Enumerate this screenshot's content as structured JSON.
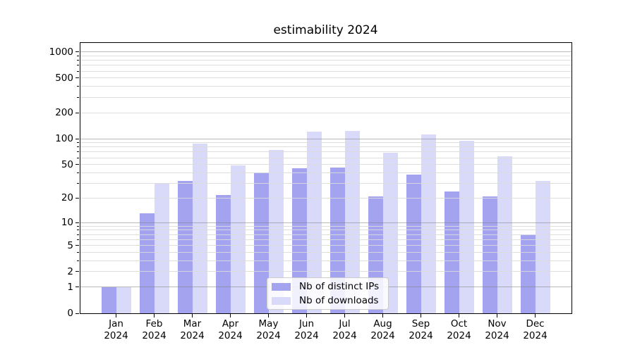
{
  "title": "estimability 2024",
  "chart_data": {
    "type": "bar",
    "title": "estimability 2024",
    "categories": [
      "Jan 2024",
      "Feb 2024",
      "Mar 2024",
      "Apr 2024",
      "May 2024",
      "Jun 2024",
      "Jul 2024",
      "Aug 2024",
      "Sep 2024",
      "Oct 2024",
      "Nov 2024",
      "Dec 2024"
    ],
    "month_short": [
      "Jan",
      "Feb",
      "Mar",
      "Apr",
      "May",
      "Jun",
      "Jul",
      "Aug",
      "Sep",
      "Oct",
      "Nov",
      "Dec"
    ],
    "year": "2024",
    "series": [
      {
        "name": "Nb of distinct IPs",
        "color": "#a3a3f0",
        "values": [
          1,
          13,
          32,
          22,
          40,
          45,
          46,
          21,
          38,
          24,
          21,
          7
        ]
      },
      {
        "name": "Nb of downloads",
        "color": "#d9d9f9",
        "values": [
          1,
          30,
          88,
          49,
          74,
          120,
          124,
          68,
          112,
          94,
          62,
          32
        ]
      }
    ],
    "xlabel": "",
    "ylabel": "",
    "y_scale": "log10(1+y)",
    "y_ticks_labeled": [
      0,
      1,
      2,
      5,
      10,
      20,
      50,
      100,
      200,
      500,
      1000
    ],
    "y_grid_major": [
      1,
      10,
      100,
      1000
    ],
    "y_grid_minor_rule": "2..9 per decade (2-9, 20-90, 200-900)",
    "ylim": [
      0,
      1292
    ],
    "grid_position": "drawn over bars",
    "legend": {
      "position": "inside lower-center",
      "entries": [
        "Nb of distinct IPs",
        "Nb of downloads"
      ]
    }
  },
  "colors": {
    "background": "#ffffff",
    "bar_distinct_ips": "#a3a3f0",
    "bar_downloads": "#d9d9f9",
    "grid_major": "rgba(130,130,130,0.55)",
    "grid_minor": "rgba(218,218,218,0.9)",
    "axis": "#000000",
    "legend_border": "#cccccc",
    "text": "#000000"
  }
}
